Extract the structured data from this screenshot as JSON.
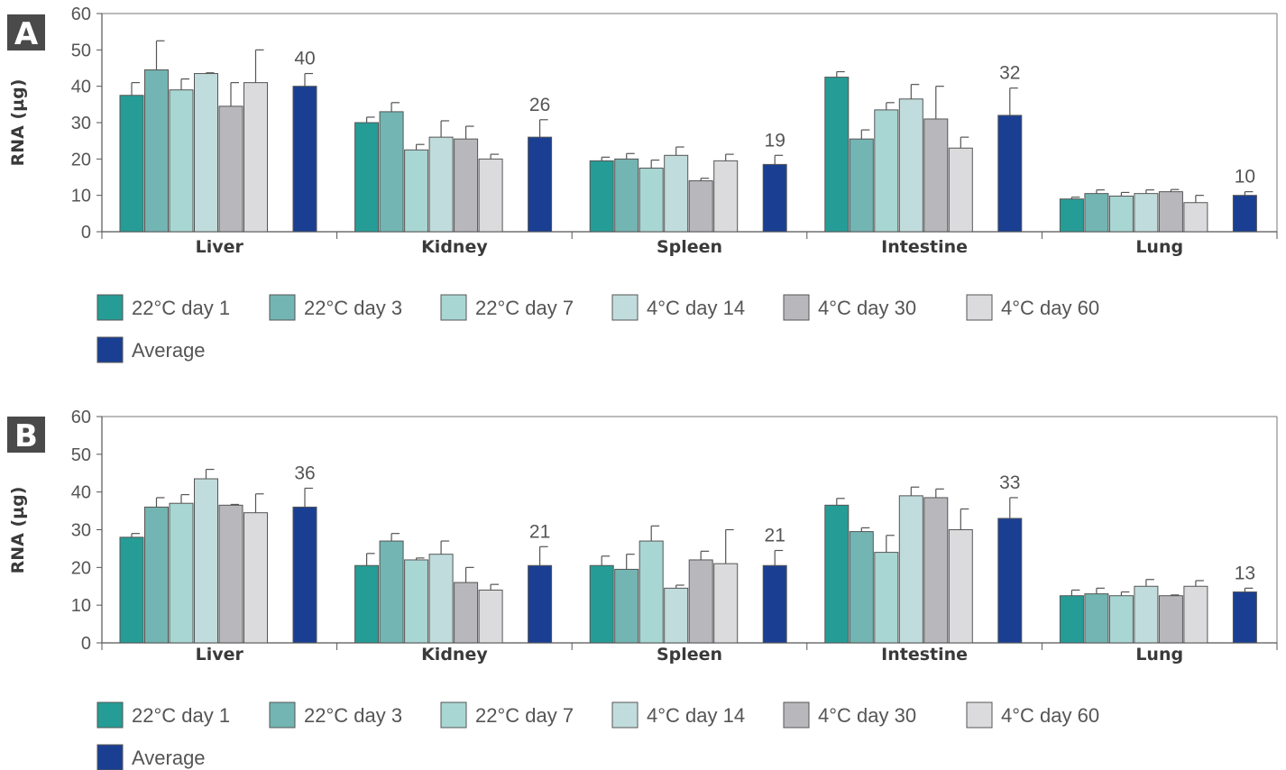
{
  "chart_data": [
    {
      "panel": "A",
      "type": "bar",
      "ylabel": "RNA (µg)",
      "ylim": [
        0,
        60
      ],
      "yticks": [
        "0",
        "10",
        "20",
        "30",
        "40",
        "50",
        "60"
      ],
      "grid": false,
      "legend_position": "bottom",
      "categories": [
        "Liver",
        "Kidney",
        "Spleen",
        "Intestine",
        "Lung"
      ],
      "series": [
        {
          "name": "22°C day 1",
          "color": "#269c96",
          "values": [
            37.5,
            30,
            19.5,
            42.5,
            9
          ],
          "errors": [
            3.5,
            1.5,
            1,
            1.5,
            0.5
          ]
        },
        {
          "name": "22°C day 3",
          "color": "#73b5b2",
          "values": [
            44.5,
            33,
            20,
            25.5,
            10.5
          ],
          "errors": [
            8,
            2.5,
            1.5,
            2.5,
            1
          ]
        },
        {
          "name": "22°C day 7",
          "color": "#a8d6d3",
          "values": [
            39,
            22.5,
            17.5,
            33.5,
            9.8
          ],
          "errors": [
            3,
            1.5,
            2.2,
            2,
            1
          ]
        },
        {
          "name": "4°C day 14",
          "color": "#c1dcdc",
          "values": [
            43.5,
            26,
            21,
            36.5,
            10.5
          ],
          "errors": [
            0.2,
            4.5,
            2.3,
            4,
            1
          ]
        },
        {
          "name": "4°C day 30",
          "color": "#b8b8bc",
          "values": [
            34.5,
            25.5,
            14,
            31,
            11
          ],
          "errors": [
            6.5,
            3.5,
            0.7,
            9,
            0.6
          ]
        },
        {
          "name": "4°C day 60",
          "color": "#dbdbdd",
          "values": [
            41,
            20,
            19.5,
            23,
            8
          ],
          "errors": [
            9,
            1.3,
            1.8,
            3,
            2
          ]
        },
        {
          "name": "Average",
          "color": "#1a3f92",
          "values": [
            40,
            26,
            18.5,
            32,
            10
          ],
          "errors": [
            3.5,
            4.8,
            2.5,
            7.5,
            1
          ],
          "labels": [
            "40",
            "26",
            "19",
            "32",
            "10"
          ]
        }
      ]
    },
    {
      "panel": "B",
      "type": "bar",
      "ylabel": "RNA (µg)",
      "ylim": [
        0,
        60
      ],
      "yticks": [
        "0",
        "10",
        "20",
        "30",
        "40",
        "50",
        "60"
      ],
      "grid": false,
      "legend_position": "bottom",
      "categories": [
        "Liver",
        "Kidney",
        "Spleen",
        "Intestine",
        "Lung"
      ],
      "series": [
        {
          "name": "22°C day 1",
          "color": "#269c96",
          "values": [
            28,
            20.5,
            20.5,
            36.5,
            12.5
          ],
          "errors": [
            1,
            3.2,
            2.5,
            1.8,
            1.5
          ]
        },
        {
          "name": "22°C day 3",
          "color": "#73b5b2",
          "values": [
            36,
            27,
            19.5,
            29.5,
            13
          ],
          "errors": [
            2.5,
            2,
            4,
            1,
            1.5
          ]
        },
        {
          "name": "22°C day 7",
          "color": "#a8d6d3",
          "values": [
            37,
            22,
            27,
            24,
            12.5
          ],
          "errors": [
            2.3,
            0.5,
            4,
            4.5,
            1
          ]
        },
        {
          "name": "4°C day 14",
          "color": "#c1dcdc",
          "values": [
            43.5,
            23.5,
            14.5,
            39,
            15
          ],
          "errors": [
            2.5,
            3.5,
            0.8,
            2.3,
            1.8
          ]
        },
        {
          "name": "4°C day 30",
          "color": "#b8b8bc",
          "values": [
            36.5,
            16,
            22,
            38.5,
            12.5
          ],
          "errors": [
            0.2,
            4,
            2.3,
            2.3,
            0.2
          ]
        },
        {
          "name": "4°C day 60",
          "color": "#dbdbdd",
          "values": [
            34.5,
            14,
            21,
            30,
            15
          ],
          "errors": [
            5,
            1.5,
            9,
            5.5,
            1.5
          ]
        },
        {
          "name": "Average",
          "color": "#1a3f92",
          "values": [
            36,
            20.5,
            20.5,
            33,
            13.5
          ],
          "errors": [
            5,
            5,
            4,
            5.5,
            1
          ],
          "labels": [
            "36",
            "21",
            "21",
            "33",
            "13"
          ]
        }
      ]
    }
  ]
}
